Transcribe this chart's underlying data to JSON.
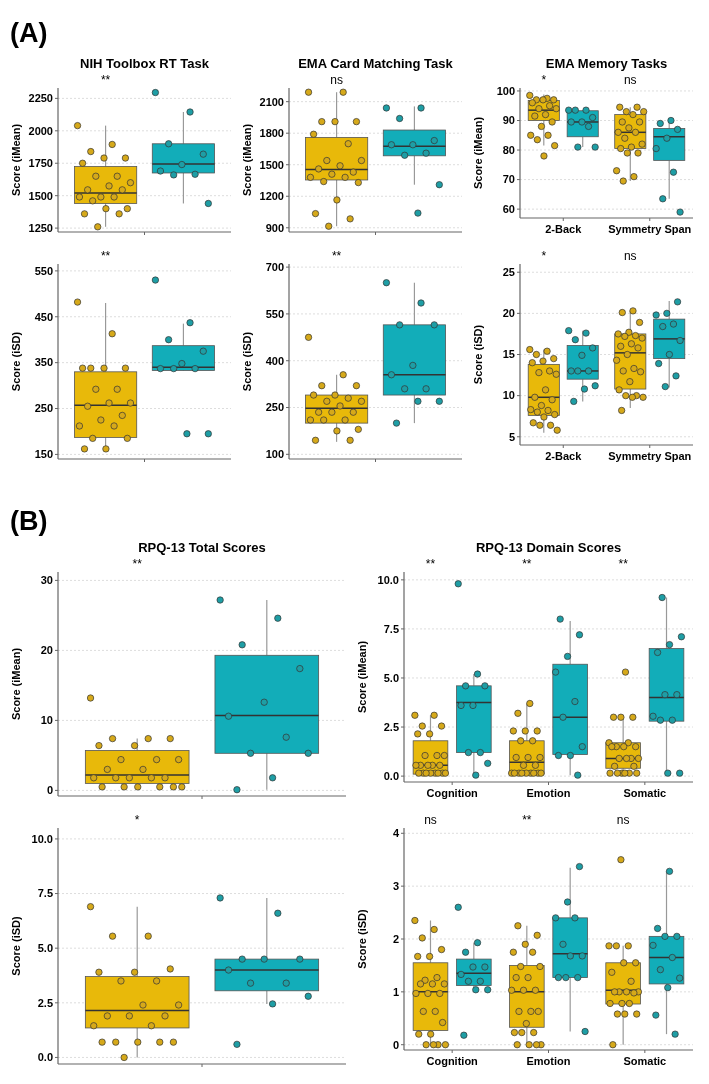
{
  "chart_data": [
    {
      "type": "other",
      "title": "(A)"
    },
    {
      "type": "box",
      "title": "NIH Toolbox RT Task",
      "ylabel": "Score (iMean)",
      "categories": [
        null
      ],
      "ylim": [
        1220,
        2330
      ],
      "yticks": [
        1250,
        1500,
        1750,
        2000,
        2250
      ],
      "grid": "y",
      "marker": "circle",
      "annotations": [
        "**"
      ],
      "series": [
        {
          "color": "#e8b90a",
          "boxes": [
            {
              "low": 1260,
              "q1": 1440,
              "median": 1520,
              "q3": 1725,
              "high": 2040
            }
          ]
        },
        {
          "color": "#12adb9",
          "boxes": [
            {
              "low": 1440,
              "q1": 1675,
              "median": 1745,
              "q3": 1900,
              "high": 2145
            }
          ]
        },
        {
          "type": "scatter",
          "color": "#d6a91a",
          "x": [
            null,
            null,
            null,
            null,
            null,
            null,
            null,
            null,
            null,
            null,
            null,
            null,
            null,
            null,
            null,
            null,
            null,
            null,
            null,
            null,
            null
          ],
          "values": [
            2040,
            1895,
            1840,
            1790,
            1790,
            1750,
            1650,
            1650,
            1600,
            1575,
            1545,
            1545,
            1490,
            1490,
            1490,
            1460,
            1400,
            1400,
            1360,
            1360,
            1260
          ]
        },
        {
          "type": "scatter",
          "color": "#1e9ea5",
          "x": [
            null,
            null,
            null,
            null,
            null,
            null,
            null,
            null,
            null
          ],
          "values": [
            2295,
            2145,
            1900,
            1820,
            1740,
            1690,
            1665,
            1660,
            1440
          ]
        }
      ]
    },
    {
      "type": "box",
      "title": "EMA Card Matching Task",
      "ylabel": "Score (iMean)",
      "categories": [
        null
      ],
      "ylim": [
        860,
        2230
      ],
      "yticks": [
        900,
        1200,
        1500,
        1800,
        2100
      ],
      "grid": "y",
      "marker": "circle",
      "annotations": [
        "ns"
      ],
      "series": [
        {
          "color": "#e8b90a",
          "boxes": [
            {
              "low": 915,
              "q1": 1355,
              "median": 1455,
              "q3": 1760,
              "high": 2190
            }
          ]
        },
        {
          "color": "#12adb9",
          "boxes": [
            {
              "low": 1310,
              "q1": 1585,
              "median": 1675,
              "q3": 1830,
              "high": 2055
            }
          ]
        },
        {
          "type": "scatter",
          "color": "#d6a91a",
          "x": [
            null,
            null,
            null,
            null,
            null,
            null,
            null,
            null,
            null,
            null,
            null,
            null,
            null,
            null,
            null,
            null,
            null,
            null,
            null,
            null,
            null
          ],
          "values": [
            2190,
            2190,
            1910,
            1910,
            1910,
            1790,
            1700,
            1540,
            1540,
            1490,
            1460,
            1430,
            1410,
            1380,
            1380,
            1340,
            1330,
            1165,
            1035,
            985,
            915
          ]
        },
        {
          "type": "scatter",
          "color": "#1e9ea5",
          "x": [
            null,
            null,
            null,
            null,
            null,
            null,
            null,
            null,
            null,
            null
          ],
          "values": [
            2040,
            2040,
            1940,
            1730,
            1690,
            1690,
            1610,
            1590,
            1310,
            1040
          ]
        }
      ]
    },
    {
      "type": "box",
      "title": "EMA Memory Tasks",
      "ylabel": "Score (iMean)",
      "categories": [
        "2-Back",
        "Symmetry Span"
      ],
      "ylim": [
        57,
        101
      ],
      "yticks": [
        60,
        70,
        80,
        90,
        100
      ],
      "grid": "y",
      "marker": "circle",
      "annotations": [
        "*",
        "ns"
      ],
      "series": [
        {
          "color": "#e8b90a",
          "boxes": [
            {
              "low": 81.5,
              "q1": 90,
              "median": 93.5,
              "q3": 96.8,
              "high": 98.8
            },
            {
              "low": 69.5,
              "q1": 80.5,
              "median": 86,
              "q3": 92,
              "high": 94.5
            }
          ]
        },
        {
          "color": "#12adb9",
          "boxes": [
            {
              "low": 81,
              "q1": 84.5,
              "median": 89.5,
              "q3": 93.3,
              "high": 93.5
            },
            {
              "low": 63.5,
              "q1": 76.5,
              "median": 84.5,
              "q3": 87.3,
              "high": 90
            }
          ]
        },
        {
          "type": "scatter",
          "color": "#d6a91a",
          "x": [
            "2-Back",
            "2-Back",
            "2-Back",
            "2-Back",
            "2-Back",
            "2-Back",
            "2-Back",
            "2-Back",
            "2-Back",
            "2-Back",
            "2-Back",
            "2-Back",
            "2-Back",
            "2-Back",
            "2-Back",
            "2-Back",
            "2-Back",
            "2-Back",
            "Symmetry Span",
            "Symmetry Span",
            "Symmetry Span",
            "Symmetry Span",
            "Symmetry Span",
            "Symmetry Span",
            "Symmetry Span",
            "Symmetry Span",
            "Symmetry Span",
            "Symmetry Span",
            "Symmetry Span",
            "Symmetry Span",
            "Symmetry Span",
            "Symmetry Span",
            "Symmetry Span",
            "Symmetry Span",
            "Symmetry Span",
            "Symmetry Span",
            "Symmetry Span"
          ],
          "values": [
            98.5,
            97.5,
            97,
            97,
            97,
            96,
            95,
            94,
            94,
            92,
            91.5,
            89.5,
            88,
            85,
            85,
            83.5,
            81.5,
            78,
            94.5,
            94.5,
            93,
            93,
            92,
            89.5,
            89.5,
            87.5,
            86,
            86,
            84,
            82,
            81,
            80.5,
            79,
            79,
            73,
            71,
            69.5
          ]
        },
        {
          "type": "scatter",
          "color": "#1e9ea5",
          "x": [
            "2-Back",
            "2-Back",
            "2-Back",
            "2-Back",
            "2-Back",
            "2-Back",
            "2-Back",
            "2-Back",
            "2-Back",
            "Symmetry Span",
            "Symmetry Span",
            "Symmetry Span",
            "Symmetry Span",
            "Symmetry Span",
            "Symmetry Span",
            "Symmetry Span",
            "Symmetry Span"
          ],
          "values": [
            93.5,
            93.5,
            93.5,
            91,
            89.5,
            89.5,
            88,
            81,
            81,
            90,
            89,
            87,
            84,
            80.5,
            72.5,
            63.5,
            59
          ]
        }
      ]
    },
    {
      "type": "box",
      "ylabel": "Score (iSD)",
      "categories": [
        null
      ],
      "ylim": [
        140,
        565
      ],
      "yticks": [
        150,
        250,
        350,
        450,
        550
      ],
      "grid": "y",
      "marker": "circle",
      "annotations": [
        "**"
      ],
      "series": [
        {
          "color": "#e8b90a",
          "boxes": [
            {
              "low": 160,
              "q1": 187,
              "median": 257,
              "q3": 330,
              "high": 480
            }
          ]
        },
        {
          "color": "#12adb9",
          "boxes": [
            {
              "low": 335,
              "q1": 333,
              "median": 340,
              "q3": 387,
              "high": 435
            }
          ]
        },
        {
          "type": "scatter",
          "color": "#d6a91a",
          "x": [
            null,
            null,
            null,
            null,
            null,
            null,
            null,
            null,
            null,
            null,
            null,
            null,
            null,
            null,
            null,
            null,
            null,
            null,
            null
          ],
          "values": [
            482,
            413,
            338,
            338,
            338,
            338,
            292,
            292,
            262,
            262,
            255,
            235,
            225,
            212,
            212,
            185,
            185,
            162,
            162
          ]
        },
        {
          "type": "scatter",
          "color": "#1e9ea5",
          "x": [
            null,
            null,
            null,
            null,
            null,
            null,
            null,
            null,
            null,
            null
          ],
          "values": [
            530,
            437,
            400,
            375,
            348,
            337,
            337,
            337,
            195,
            195
          ]
        }
      ]
    },
    {
      "type": "box",
      "ylabel": "Score (iSD)",
      "categories": [
        null
      ],
      "ylim": [
        85,
        710
      ],
      "yticks": [
        100,
        250,
        400,
        550,
        700
      ],
      "grid": "y",
      "marker": "circle",
      "annotations": [
        "**"
      ],
      "series": [
        {
          "color": "#e8b90a",
          "boxes": [
            {
              "low": 140,
              "q1": 200,
              "median": 248,
              "q3": 290,
              "high": 355
            }
          ]
        },
        {
          "color": "#12adb9",
          "boxes": [
            {
              "low": 200,
              "q1": 290,
              "median": 355,
              "q3": 515,
              "high": 650
            }
          ]
        },
        {
          "type": "scatter",
          "color": "#d6a91a",
          "x": [
            null,
            null,
            null,
            null,
            null,
            null,
            null,
            null,
            null,
            null,
            null,
            null,
            null,
            null,
            null,
            null,
            null,
            null,
            null,
            null
          ],
          "values": [
            475,
            355,
            320,
            320,
            290,
            290,
            280,
            270,
            270,
            255,
            235,
            235,
            235,
            210,
            210,
            210,
            180,
            175,
            145,
            145
          ]
        },
        {
          "type": "scatter",
          "color": "#1e9ea5",
          "x": [
            null,
            null,
            null,
            null,
            null,
            null,
            null,
            null,
            null,
            null,
            null
          ],
          "values": [
            650,
            585,
            515,
            515,
            385,
            355,
            310,
            310,
            270,
            270,
            200
          ]
        }
      ]
    },
    {
      "type": "box",
      "ylabel": "Score (iSD)",
      "categories": [
        "2-Back",
        "Symmetry Span"
      ],
      "ylim": [
        4,
        26
      ],
      "yticks": [
        5,
        10,
        15,
        20,
        25
      ],
      "grid": "y",
      "marker": "circle",
      "annotations": [
        "*",
        "ns"
      ],
      "series": [
        {
          "color": "#e8b90a",
          "boxes": [
            {
              "low": 5.5,
              "q1": 7.6,
              "median": 9.8,
              "q3": 13.8,
              "high": 15.6
            },
            {
              "low": 8.5,
              "q1": 10.8,
              "median": 15.2,
              "q3": 17.5,
              "high": 20.3
            }
          ]
        },
        {
          "color": "#12adb9",
          "boxes": [
            {
              "low": 9.3,
              "q1": 12,
              "median": 13,
              "q3": 16.1,
              "high": 17.9
            },
            {
              "low": 11,
              "q1": 14.5,
              "median": 16.9,
              "q3": 19.3,
              "high": 21.5
            }
          ]
        },
        {
          "type": "scatter",
          "color": "#d6a91a",
          "x": [
            "2-Back",
            "2-Back",
            "2-Back",
            "2-Back",
            "2-Back",
            "2-Back",
            "2-Back",
            "2-Back",
            "2-Back",
            "2-Back",
            "2-Back",
            "2-Back",
            "2-Back",
            "2-Back",
            "2-Back",
            "2-Back",
            "2-Back",
            "2-Back",
            "2-Back",
            "2-Back",
            "2-Back",
            "2-Back",
            "Symmetry Span",
            "Symmetry Span",
            "Symmetry Span",
            "Symmetry Span",
            "Symmetry Span",
            "Symmetry Span",
            "Symmetry Span",
            "Symmetry Span",
            "Symmetry Span",
            "Symmetry Span",
            "Symmetry Span",
            "Symmetry Span",
            "Symmetry Span",
            "Symmetry Span",
            "Symmetry Span",
            "Symmetry Span",
            "Symmetry Span",
            "Symmetry Span",
            "Symmetry Span",
            "Symmetry Span",
            "Symmetry Span",
            "Symmetry Span",
            "Symmetry Span"
          ],
          "values": [
            15.6,
            15.4,
            15,
            14.5,
            14.2,
            14,
            13,
            12.8,
            12.6,
            10.7,
            9.8,
            9.5,
            8.8,
            8.3,
            8.2,
            8,
            7.7,
            7.4,
            6.7,
            6.4,
            6.4,
            5.8,
            20.3,
            20.1,
            18.9,
            17.7,
            17.5,
            17.3,
            17.2,
            17,
            16.3,
            16,
            15.8,
            15,
            14.3,
            13.3,
            13,
            12.9,
            11.7,
            10.7,
            10,
            10,
            9.8,
            9.8,
            8.2
          ]
        },
        {
          "type": "scatter",
          "color": "#1e9ea5",
          "x": [
            "2-Back",
            "2-Back",
            "2-Back",
            "2-Back",
            "2-Back",
            "2-Back",
            "2-Back",
            "2-Back",
            "2-Back",
            "2-Back",
            "2-Back",
            "Symmetry Span",
            "Symmetry Span",
            "Symmetry Span",
            "Symmetry Span",
            "Symmetry Span",
            "Symmetry Span",
            "Symmetry Span",
            "Symmetry Span",
            "Symmetry Span",
            "Symmetry Span"
          ],
          "values": [
            17.9,
            17.6,
            16.8,
            15.8,
            14.9,
            13,
            13,
            13,
            11.2,
            10.8,
            9.3,
            21.4,
            20,
            19.8,
            18.7,
            18.4,
            16.7,
            15,
            13.9,
            12.4,
            11.1
          ]
        }
      ]
    },
    {
      "type": "other",
      "title": "(B)"
    },
    {
      "type": "box",
      "title": "RPQ-13 Total Scores",
      "ylabel": "Score (iMean)",
      "categories": [
        null
      ],
      "ylim": [
        -0.8,
        31.2
      ],
      "yticks": [
        0,
        10,
        20,
        30
      ],
      "grid": "y",
      "marker": "circle",
      "annotations": [
        "**"
      ],
      "series": [
        {
          "color": "#e8b90a",
          "boxes": [
            {
              "low": 0.5,
              "q1": 1,
              "median": 2.2,
              "q3": 5.7,
              "high": 7.4
            }
          ]
        },
        {
          "color": "#12adb9",
          "boxes": [
            {
              "low": 0.1,
              "q1": 5.3,
              "median": 10.7,
              "q3": 19.3,
              "high": 27.2
            }
          ]
        },
        {
          "type": "scatter",
          "color": "#d6a91a",
          "x": [
            null,
            null,
            null,
            null,
            null,
            null,
            null,
            null,
            null,
            null,
            null,
            null,
            null,
            null,
            null,
            null,
            null,
            null,
            null,
            null,
            null,
            null
          ],
          "values": [
            13.2,
            7.4,
            7.4,
            7.4,
            6.4,
            6.4,
            4.4,
            4.4,
            4.4,
            3,
            3,
            1.8,
            1.8,
            1.8,
            1.8,
            1.8,
            0.5,
            0.5,
            0.5,
            0.5,
            0.5,
            0.5
          ]
        },
        {
          "type": "scatter",
          "color": "#1e9ea5",
          "x": [
            null,
            null,
            null,
            null,
            null,
            null,
            null,
            null,
            null,
            null,
            null
          ],
          "values": [
            27.2,
            24.6,
            20.8,
            17.4,
            12.6,
            10.6,
            7.6,
            5.3,
            5.3,
            1.8,
            0.1
          ]
        }
      ]
    },
    {
      "type": "box",
      "title": "RPQ-13 Domain Scores",
      "ylabel": "Score (iMean)",
      "categories": [
        "Cognition",
        "Emotion",
        "Somatic"
      ],
      "ylim": [
        -0.3,
        10.4
      ],
      "yticks": [
        {
          "value": 0,
          "label": "0.0"
        },
        {
          "value": 2.5,
          "label": "2.5"
        },
        {
          "value": 5,
          "label": "5.0"
        },
        {
          "value": 7.5,
          "label": "7.5"
        },
        {
          "value": 10,
          "label": "10.0"
        }
      ],
      "grid": "y",
      "marker": "circle",
      "annotations": [
        "**",
        "**",
        "**"
      ],
      "series": [
        {
          "color": "#e8b90a",
          "boxes": [
            {
              "low": 0.1,
              "q1": 0.1,
              "median": 0.55,
              "q3": 1.8,
              "high": 3.1
            },
            {
              "low": 0.1,
              "q1": 0.1,
              "median": 0.7,
              "q3": 1.8,
              "high": 3.7
            },
            {
              "low": 0.1,
              "q1": 0.4,
              "median": 0.9,
              "q3": 1.7,
              "high": 3
            }
          ]
        },
        {
          "color": "#12adb9",
          "boxes": [
            {
              "low": 0.05,
              "q1": 1.2,
              "median": 3.75,
              "q3": 4.6,
              "high": 5.2
            },
            {
              "low": 0.05,
              "q1": 1.1,
              "median": 3,
              "q3": 5.7,
              "high": 7.9
            },
            {
              "low": 0.1,
              "q1": 2.8,
              "median": 4,
              "q3": 6.5,
              "high": 9.1
            }
          ]
        },
        {
          "type": "scatter",
          "color": "#d6a91a",
          "x": [
            "Cognition",
            "Cognition",
            "Cognition",
            "Cognition",
            "Cognition",
            "Cognition",
            "Cognition",
            "Cognition",
            "Cognition",
            "Cognition",
            "Cognition",
            "Cognition",
            "Cognition",
            "Cognition",
            "Cognition",
            "Cognition",
            "Cognition",
            "Cognition",
            "Cognition",
            "Cognition",
            "Cognition",
            "Cognition",
            "Emotion",
            "Emotion",
            "Emotion",
            "Emotion",
            "Emotion",
            "Emotion",
            "Emotion",
            "Emotion",
            "Emotion",
            "Emotion",
            "Emotion",
            "Emotion",
            "Emotion",
            "Emotion",
            "Emotion",
            "Emotion",
            "Emotion",
            "Emotion",
            "Emotion",
            "Emotion",
            "Emotion",
            "Somatic",
            "Somatic",
            "Somatic",
            "Somatic",
            "Somatic",
            "Somatic",
            "Somatic",
            "Somatic",
            "Somatic",
            "Somatic",
            "Somatic",
            "Somatic",
            "Somatic",
            "Somatic",
            "Somatic",
            "Somatic",
            "Somatic",
            "Somatic",
            "Somatic",
            "Somatic",
            "Somatic",
            "Somatic"
          ],
          "values": [
            3.1,
            3.1,
            2.55,
            2.55,
            2.15,
            2.15,
            1.05,
            1.05,
            1.05,
            0.55,
            0.55,
            0.55,
            0.55,
            0.55,
            0.15,
            0.15,
            0.15,
            0.15,
            0.15,
            0.15,
            0.15,
            0.15,
            3.7,
            3.2,
            2.3,
            2.3,
            2.3,
            1.8,
            1.8,
            0.95,
            0.95,
            0.95,
            0.55,
            0.55,
            0.15,
            0.15,
            0.15,
            0.15,
            0.15,
            0.15,
            0.15,
            0.15,
            0.15,
            5.3,
            3,
            3,
            3,
            1.7,
            1.7,
            1.5,
            1.5,
            1.5,
            1.5,
            0.9,
            0.9,
            0.9,
            0.9,
            0.5,
            0.5,
            0.15,
            0.15,
            0.15,
            0.15,
            0.15,
            0.15
          ]
        },
        {
          "type": "scatter",
          "color": "#1e9ea5",
          "x": [
            "Cognition",
            "Cognition",
            "Cognition",
            "Cognition",
            "Cognition",
            "Cognition",
            "Cognition",
            "Cognition",
            "Cognition",
            "Cognition",
            "Emotion",
            "Emotion",
            "Emotion",
            "Emotion",
            "Emotion",
            "Emotion",
            "Emotion",
            "Emotion",
            "Emotion",
            "Emotion",
            "Somatic",
            "Somatic",
            "Somatic",
            "Somatic",
            "Somatic",
            "Somatic",
            "Somatic",
            "Somatic",
            "Somatic",
            "Somatic",
            "Somatic"
          ],
          "values": [
            9.8,
            5.2,
            4.6,
            4.6,
            3.6,
            3.6,
            1.2,
            1.2,
            0.65,
            0.05,
            8,
            7.2,
            6.1,
            5.3,
            3.8,
            3,
            1.5,
            1.05,
            1.05,
            0.05,
            9.1,
            7.1,
            6.7,
            6.3,
            4.15,
            4.15,
            3.05,
            2.85,
            2.85,
            0.15,
            0.15
          ]
        }
      ]
    },
    {
      "type": "box",
      "ylabel": "Score (iSD)",
      "categories": [
        null
      ],
      "ylim": [
        -0.3,
        10.5
      ],
      "yticks": [
        {
          "value": 0,
          "label": "0.0"
        },
        {
          "value": 2.5,
          "label": "2.5"
        },
        {
          "value": 5,
          "label": "5.0"
        },
        {
          "value": 7.5,
          "label": "7.5"
        },
        {
          "value": 10,
          "label": "10.0"
        }
      ],
      "grid": "y",
      "marker": "circle",
      "annotations": [
        "*"
      ],
      "series": [
        {
          "color": "#e8b90a",
          "boxes": [
            {
              "low": 0,
              "q1": 1.35,
              "median": 2.15,
              "q3": 3.7,
              "high": 6.9
            }
          ]
        },
        {
          "color": "#12adb9",
          "boxes": [
            {
              "low": 2.45,
              "q1": 3.05,
              "median": 4,
              "q3": 4.5,
              "high": 7.3
            }
          ]
        },
        {
          "type": "scatter",
          "color": "#d6a91a",
          "x": [
            null,
            null,
            null,
            null,
            null,
            null,
            null,
            null,
            null,
            null,
            null,
            null,
            null,
            null,
            null,
            null,
            null,
            null,
            null,
            null,
            null
          ],
          "values": [
            6.9,
            5.55,
            5.55,
            4.05,
            3.9,
            3.9,
            3.5,
            3.5,
            2.4,
            2.4,
            1.9,
            1.9,
            1.9,
            1.45,
            1.45,
            0.7,
            0.7,
            0.7,
            0.7,
            0.7,
            0
          ]
        },
        {
          "type": "scatter",
          "color": "#1e9ea5",
          "x": [
            null,
            null,
            null,
            null,
            null,
            null,
            null,
            null,
            null,
            null,
            null
          ],
          "values": [
            7.3,
            6.6,
            4.5,
            4.5,
            4.5,
            4,
            3.4,
            3.4,
            2.8,
            2.45,
            0.6
          ]
        }
      ]
    },
    {
      "type": "box",
      "ylabel": "Score (iSD)",
      "categories": [
        "Cognition",
        "Emotion",
        "Somatic"
      ],
      "ylim": [
        -0.1,
        4.1
      ],
      "yticks": [
        0,
        1,
        2,
        3,
        4
      ],
      "grid": "y",
      "marker": "circle",
      "annotations": [
        "ns",
        "**",
        "ns"
      ],
      "series": [
        {
          "color": "#e8b90a",
          "boxes": [
            {
              "low": 0,
              "q1": 0.27,
              "median": 1,
              "q3": 1.55,
              "high": 2.35
            },
            {
              "low": 0,
              "q1": 0.33,
              "median": 1,
              "q3": 1.5,
              "high": 2.25
            },
            {
              "low": 0,
              "q1": 0.77,
              "median": 1.03,
              "q3": 1.55,
              "high": 1.87
            }
          ]
        },
        {
          "color": "#12adb9",
          "boxes": [
            {
              "low": 1.05,
              "q1": 1.12,
              "median": 1.35,
              "q3": 1.62,
              "high": 1.93
            },
            {
              "low": 0.25,
              "q1": 1.27,
              "median": 1.72,
              "q3": 2.4,
              "high": 3.35
            },
            {
              "low": 0.2,
              "q1": 1.15,
              "median": 1.65,
              "q3": 2.05,
              "high": 3.28
            }
          ]
        },
        {
          "type": "scatter",
          "color": "#d6a91a",
          "x": [
            "Cognition",
            "Cognition",
            "Cognition",
            "Cognition",
            "Cognition",
            "Cognition",
            "Cognition",
            "Cognition",
            "Cognition",
            "Cognition",
            "Cognition",
            "Cognition",
            "Cognition",
            "Cognition",
            "Cognition",
            "Cognition",
            "Cognition",
            "Cognition",
            "Cognition",
            "Cognition",
            "Cognition",
            "Cognition",
            "Cognition",
            "Emotion",
            "Emotion",
            "Emotion",
            "Emotion",
            "Emotion",
            "Emotion",
            "Emotion",
            "Emotion",
            "Emotion",
            "Emotion",
            "Emotion",
            "Emotion",
            "Emotion",
            "Emotion",
            "Emotion",
            "Emotion",
            "Emotion",
            "Emotion",
            "Emotion",
            "Emotion",
            "Emotion",
            "Emotion",
            "Emotion",
            "Somatic",
            "Somatic",
            "Somatic",
            "Somatic",
            "Somatic",
            "Somatic",
            "Somatic",
            "Somatic",
            "Somatic",
            "Somatic",
            "Somatic",
            "Somatic",
            "Somatic",
            "Somatic",
            "Somatic",
            "Somatic",
            "Somatic",
            "Somatic",
            "Somatic",
            "Somatic"
          ],
          "values": [
            2.35,
            2.18,
            2.02,
            1.8,
            1.67,
            1.67,
            1.27,
            1.22,
            1.15,
            1.15,
            1.15,
            0.97,
            0.97,
            0.97,
            0.63,
            0.63,
            0.42,
            0.2,
            0.2,
            0,
            0,
            0,
            0,
            2.25,
            2.07,
            1.9,
            1.75,
            1.75,
            1.48,
            1.48,
            1.27,
            1.27,
            1.03,
            1.03,
            1.03,
            0.63,
            0.63,
            0.63,
            0.4,
            0.23,
            0.23,
            0.23,
            0,
            0,
            0,
            0,
            3.5,
            1.87,
            1.87,
            1.87,
            1.55,
            1.55,
            1.37,
            1.2,
            1,
            1,
            1,
            1,
            0.98,
            0.78,
            0.78,
            0.78,
            0.58,
            0.58,
            0.58,
            0
          ]
        },
        {
          "type": "scatter",
          "color": "#1e9ea5",
          "x": [
            "Cognition",
            "Cognition",
            "Cognition",
            "Cognition",
            "Cognition",
            "Cognition",
            "Cognition",
            "Cognition",
            "Cognition",
            "Cognition",
            "Cognition",
            "Emotion",
            "Emotion",
            "Emotion",
            "Emotion",
            "Emotion",
            "Emotion",
            "Emotion",
            "Emotion",
            "Emotion",
            "Emotion",
            "Emotion",
            "Somatic",
            "Somatic",
            "Somatic",
            "Somatic",
            "Somatic",
            "Somatic",
            "Somatic",
            "Somatic",
            "Somatic",
            "Somatic",
            "Somatic"
          ],
          "values": [
            2.6,
            1.93,
            1.75,
            1.47,
            1.47,
            1.33,
            1.2,
            1.2,
            1.04,
            1.04,
            0.18,
            3.37,
            2.7,
            2.4,
            2.4,
            1.9,
            1.68,
            1.68,
            1.27,
            1.27,
            1.27,
            0.25,
            3.28,
            2.2,
            2.05,
            2.05,
            1.88,
            1.65,
            1.42,
            1.26,
            1.08,
            0.56,
            0.2
          ]
        }
      ]
    }
  ]
}
